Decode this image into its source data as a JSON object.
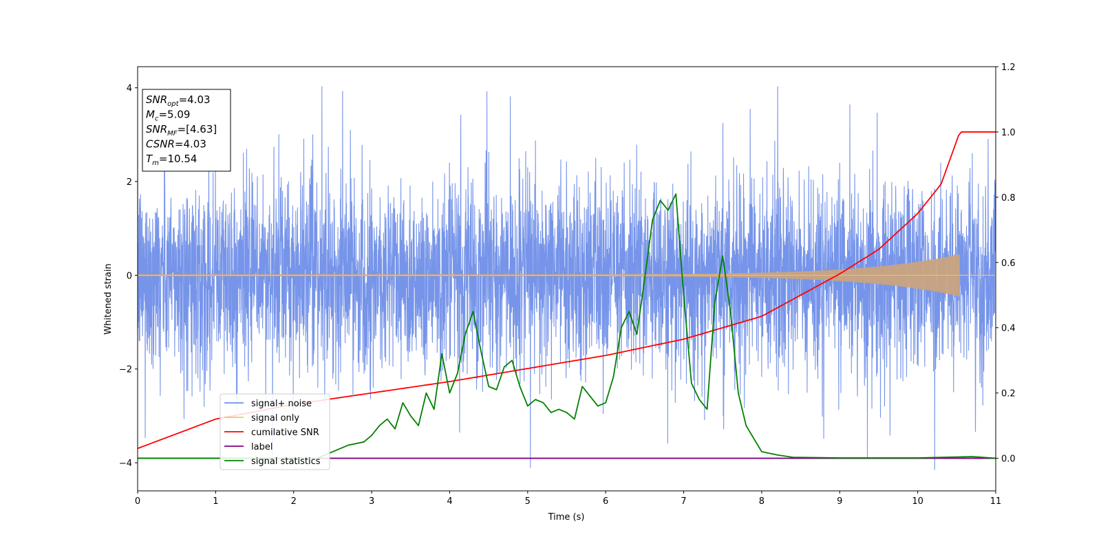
{
  "chart_data": {
    "type": "line",
    "title": "",
    "xlabel": "Time (s)",
    "ylabel": "Whitened strain",
    "xlim": [
      0,
      11
    ],
    "ylim": [
      -4.6,
      4.45
    ],
    "y2lim": [
      -0.1,
      1.2
    ],
    "grid": false,
    "legend_position": "lower-left",
    "x_ticks": [
      0,
      1,
      2,
      3,
      4,
      5,
      6,
      7,
      8,
      9,
      10,
      11
    ],
    "x_tick_labels": [
      "0",
      "1",
      "2",
      "3",
      "4",
      "5",
      "6",
      "7",
      "8",
      "9",
      "10",
      "11"
    ],
    "y_ticks": [
      -4,
      -2,
      0,
      2,
      4
    ],
    "y_tick_labels": [
      "−4",
      "−2",
      "0",
      "2",
      "4"
    ],
    "y2_ticks": [
      0.0,
      0.2,
      0.4,
      0.6,
      0.8,
      1.0,
      1.2
    ],
    "y2_tick_labels": [
      "0.0",
      "0.2",
      "0.4",
      "0.6",
      "0.8",
      "1.0",
      "1.2"
    ],
    "info_box": {
      "lines": [
        {
          "main": "SNR",
          "sub": "opt",
          "value": "=4.03"
        },
        {
          "main": "M",
          "sub": "c",
          "value": "=5.09"
        },
        {
          "main": "SNR",
          "sub": "MF",
          "value": "=[4.63]"
        },
        {
          "main": "CSNR",
          "sub": "",
          "value": "=4.03"
        },
        {
          "main": "T",
          "sub": "m",
          "value": "=10.54"
        }
      ]
    },
    "series": [
      {
        "name": "signal+ noise",
        "axis": "left",
        "color": "#6f8ee8",
        "kind": "noise",
        "amplitude_range": [
          -4.15,
          4.03
        ]
      },
      {
        "name": "signal only",
        "axis": "left",
        "color": "#f5c26b",
        "kind": "chirp",
        "end_time": 10.54,
        "peak_amplitude": 0.45
      },
      {
        "name": "cumilative SNR",
        "axis": "right",
        "color": "#ff0000",
        "x": [
          0,
          1,
          2,
          3,
          4,
          5,
          6,
          7,
          8,
          9,
          9.5,
          10,
          10.3,
          10.54,
          11
        ],
        "y": [
          0.03,
          0.12,
          0.165,
          0.2,
          0.235,
          0.275,
          0.315,
          0.365,
          0.435,
          0.565,
          0.64,
          0.75,
          0.84,
          1.0,
          1.0
        ]
      },
      {
        "name": "label",
        "axis": "right",
        "color": "#800080",
        "x": [
          0,
          11
        ],
        "y": [
          0.0,
          0.0
        ]
      },
      {
        "name": "signal statistics",
        "axis": "right",
        "color": "#008000",
        "x": [
          0,
          2.3,
          2.5,
          2.7,
          2.9,
          3.0,
          3.1,
          3.2,
          3.3,
          3.4,
          3.5,
          3.6,
          3.7,
          3.8,
          3.9,
          4.0,
          4.1,
          4.2,
          4.3,
          4.4,
          4.5,
          4.6,
          4.7,
          4.8,
          4.9,
          5.0,
          5.1,
          5.2,
          5.3,
          5.4,
          5.5,
          5.6,
          5.7,
          5.8,
          5.9,
          6.0,
          6.1,
          6.2,
          6.3,
          6.4,
          6.5,
          6.6,
          6.7,
          6.8,
          6.9,
          7.0,
          7.1,
          7.2,
          7.3,
          7.4,
          7.5,
          7.6,
          7.7,
          7.8,
          7.9,
          8.0,
          8.2,
          8.4,
          9.0,
          10.0,
          10.7,
          11.0
        ],
        "y": [
          0.0,
          0.0,
          0.02,
          0.04,
          0.05,
          0.07,
          0.1,
          0.12,
          0.09,
          0.17,
          0.13,
          0.1,
          0.2,
          0.15,
          0.32,
          0.2,
          0.26,
          0.38,
          0.45,
          0.33,
          0.22,
          0.21,
          0.28,
          0.3,
          0.22,
          0.16,
          0.18,
          0.17,
          0.14,
          0.15,
          0.14,
          0.12,
          0.22,
          0.19,
          0.16,
          0.17,
          0.25,
          0.4,
          0.45,
          0.38,
          0.55,
          0.73,
          0.79,
          0.76,
          0.81,
          0.5,
          0.23,
          0.18,
          0.15,
          0.48,
          0.62,
          0.45,
          0.2,
          0.1,
          0.06,
          0.02,
          0.01,
          0.003,
          0.001,
          0.001,
          0.005,
          0.0
        ]
      }
    ]
  }
}
